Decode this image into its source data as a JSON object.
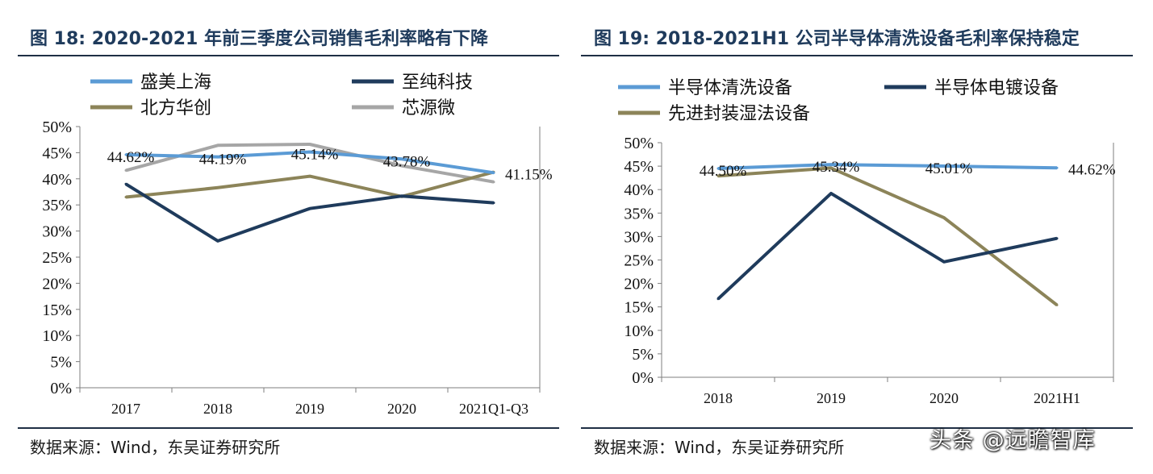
{
  "left": {
    "title": "图 18:  2020-2021 年前三季度公司销售毛利率略有下降",
    "source": "数据来源：Wind，东吴证券研究所",
    "chart_data": {
      "type": "line",
      "categories": [
        "2017",
        "2018",
        "2019",
        "2020",
        "2021Q1-Q3"
      ],
      "ylim": [
        0,
        50
      ],
      "yticks": [
        "0%",
        "5%",
        "10%",
        "15%",
        "20%",
        "25%",
        "30%",
        "35%",
        "40%",
        "45%",
        "50%"
      ],
      "grid": false,
      "legend_position": "top",
      "series": [
        {
          "name": "盛美上海",
          "color": "#5b9bd5",
          "values": [
            44.62,
            44.19,
            45.14,
            43.78,
            41.15
          ],
          "labels": [
            "44.62%",
            "44.19%",
            "45.14%",
            "43.78%",
            "41.15%"
          ]
        },
        {
          "name": "至纯科技",
          "color": "#1f3b5c",
          "values": [
            39.0,
            28.1,
            34.3,
            36.7,
            35.4
          ]
        },
        {
          "name": "北方华创",
          "color": "#8c8459",
          "values": [
            36.5,
            38.3,
            40.5,
            36.6,
            41.3
          ]
        },
        {
          "name": "芯源微",
          "color": "#a6a6a6",
          "values": [
            41.6,
            46.4,
            46.6,
            42.5,
            39.4
          ]
        }
      ]
    }
  },
  "right": {
    "title": "图 19:  2018-2021H1 公司半导体清洗设备毛利率保持稳定",
    "source": "数据来源：Wind，东吴证券研究所",
    "chart_data": {
      "type": "line",
      "categories": [
        "2018",
        "2019",
        "2020",
        "2021H1"
      ],
      "ylim": [
        0,
        50
      ],
      "yticks": [
        "0%",
        "5%",
        "10%",
        "15%",
        "20%",
        "25%",
        "30%",
        "35%",
        "40%",
        "45%",
        "50%"
      ],
      "grid": false,
      "legend_position": "top",
      "series": [
        {
          "name": "半导体清洗设备",
          "color": "#5b9bd5",
          "values": [
            44.5,
            45.34,
            45.01,
            44.62
          ],
          "labels": [
            "44.50%",
            "45.34%",
            "45.01%",
            "44.62%"
          ]
        },
        {
          "name": "半导体电镀设备",
          "color": "#1f3b5c",
          "values": [
            16.7,
            39.2,
            24.6,
            29.6
          ]
        },
        {
          "name": "先进封装湿法设备",
          "color": "#8c8459",
          "values": [
            42.9,
            44.6,
            34.0,
            15.4
          ]
        }
      ]
    }
  },
  "watermark": "头条 @远瞻智库"
}
